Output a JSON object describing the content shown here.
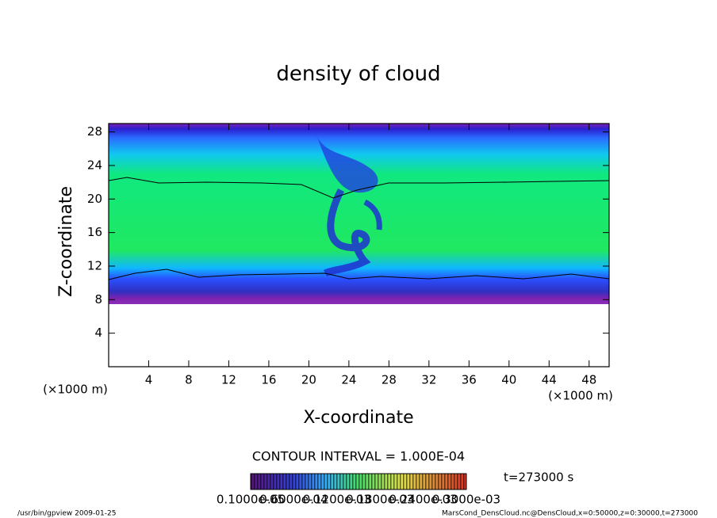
{
  "chart_data": {
    "type": "contour",
    "title": "density of cloud",
    "x_label": "X-coordinate",
    "y_label": "Z-coordinate",
    "x_units": "(×1000 m)",
    "y_units": "(×1000 m)",
    "xlim": [
      0,
      50
    ],
    "xticks": [
      4,
      8,
      12,
      16,
      20,
      24,
      28,
      32,
      36,
      40,
      44,
      48
    ],
    "ylim": [
      0,
      29
    ],
    "yticks": [
      4,
      8,
      12,
      16,
      20,
      24,
      28
    ],
    "contour_note": "CONTOUR INTERVAL = 1.000E-04",
    "time_label": "t=273000 s",
    "colorbar_labels": [
      "0.1000e-05",
      "0.6000e-04",
      "0.1200e-03",
      "0.1800e-03",
      "0.2400e-03",
      "0.3000e-03"
    ],
    "footer_left": "/usr/bin/gpview   2009-01-25",
    "footer_right": "MarsCond_DensCloud.nc@DensCloud,x=0:50000,z=0:30000,t=273000"
  }
}
